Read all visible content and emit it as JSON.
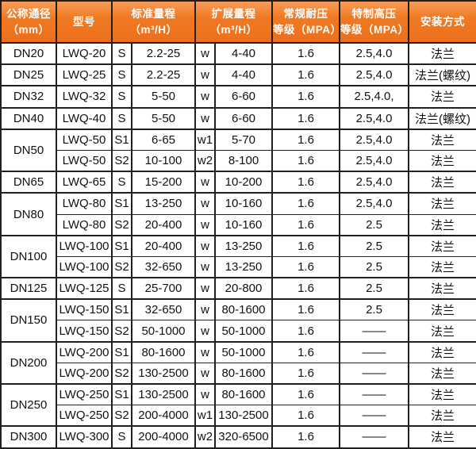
{
  "colors": {
    "header_bg": "#f0761f",
    "header_bg_highlight": "#f99c58",
    "header_text": "#ffffff",
    "grid_border": "#1f1f1f",
    "body_text": "#111111",
    "body_bg": "#ffffff"
  },
  "table": {
    "headers": [
      {
        "label": "公称通径\n（mm）"
      },
      {
        "label": "型号"
      },
      {
        "label": "标准量程\n（m³/H）"
      },
      {
        "label": "扩展量程\n（m³/H）"
      },
      {
        "label": "常规耐压\n等级（MPA）"
      },
      {
        "label": "特制高压\n等级（MPA）"
      },
      {
        "label": "安装方式"
      }
    ],
    "rows": [
      {
        "dn": "DN20",
        "dn_span": 1,
        "model": "LWQ-20",
        "std_code": "S",
        "std_range": "2.2-25",
        "ext_code": "w",
        "ext_range": "4-40",
        "normal_mpa": "1.6",
        "special_mpa": "2.5,4.0",
        "install": "法兰"
      },
      {
        "dn": "DN25",
        "dn_span": 1,
        "model": "LWQ-25",
        "std_code": "S",
        "std_range": "2.2-25",
        "ext_code": "w",
        "ext_range": "4-40",
        "normal_mpa": "1.6",
        "special_mpa": "2.5,4.0",
        "install": "法兰(螺纹)"
      },
      {
        "dn": "DN32",
        "dn_span": 1,
        "model": "LWQ-32",
        "std_code": "S",
        "std_range": "5-50",
        "ext_code": "w",
        "ext_range": "6-60",
        "normal_mpa": "1.6",
        "special_mpa": "2.5,4.0,",
        "install": "法兰"
      },
      {
        "dn": "DN40",
        "dn_span": 1,
        "model": "LWQ-40",
        "std_code": "S",
        "std_range": "5-50",
        "ext_code": "w",
        "ext_range": "6-60",
        "normal_mpa": "1.6",
        "special_mpa": "2.5,4.0",
        "install": "法兰(螺纹)"
      },
      {
        "dn": "DN50",
        "dn_span": 2,
        "model": "LWQ-50",
        "std_code": "S1",
        "std_range": "6-65",
        "ext_code": "w1",
        "ext_range": "5-70",
        "normal_mpa": "1.6",
        "special_mpa": "2.5,4.0",
        "install": "法兰"
      },
      {
        "dn": "",
        "dn_span": 0,
        "model": "LWQ-50",
        "std_code": "S2",
        "std_range": "10-100",
        "ext_code": "w2",
        "ext_range": "8-100",
        "normal_mpa": "1.6",
        "special_mpa": "2.5,4.0",
        "install": "法兰"
      },
      {
        "dn": "DN65",
        "dn_span": 1,
        "model": "LWQ-65",
        "std_code": "S",
        "std_range": "15-200",
        "ext_code": "w",
        "ext_range": "10-200",
        "normal_mpa": "1.6",
        "special_mpa": "2.5,4.0",
        "install": "法兰"
      },
      {
        "dn": "DN80",
        "dn_span": 2,
        "model": "LWQ-80",
        "std_code": "S1",
        "std_range": "13-250",
        "ext_code": "w",
        "ext_range": "10-160",
        "normal_mpa": "1.6",
        "special_mpa": "2.5,4.0",
        "install": "法兰"
      },
      {
        "dn": "",
        "dn_span": 0,
        "model": "LWQ-80",
        "std_code": "S2",
        "std_range": "20-400",
        "ext_code": "w",
        "ext_range": "10-160",
        "normal_mpa": "1.6",
        "special_mpa": "2.5",
        "install": "法兰"
      },
      {
        "dn": "DN100",
        "dn_span": 2,
        "model": "LWQ-100",
        "std_code": "S1",
        "std_range": "20-400",
        "ext_code": "w",
        "ext_range": "13-250",
        "normal_mpa": "1.6",
        "special_mpa": "2.5",
        "install": "法兰"
      },
      {
        "dn": "",
        "dn_span": 0,
        "model": "LWQ-100",
        "std_code": "S2",
        "std_range": "32-650",
        "ext_code": "w",
        "ext_range": "13-250",
        "normal_mpa": "1.6",
        "special_mpa": "2.5",
        "install": "法兰"
      },
      {
        "dn": "DN125",
        "dn_span": 1,
        "model": "LWQ-125",
        "std_code": "S",
        "std_range": "25-700",
        "ext_code": "w",
        "ext_range": "20-800",
        "normal_mpa": "1.6",
        "special_mpa": "2.5",
        "install": "法兰"
      },
      {
        "dn": "DN150",
        "dn_span": 2,
        "model": "LWQ-150",
        "std_code": "S1",
        "std_range": "32-650",
        "ext_code": "w",
        "ext_range": "80-1600",
        "normal_mpa": "1.6",
        "special_mpa": "2.5",
        "install": "法兰"
      },
      {
        "dn": "",
        "dn_span": 0,
        "model": "LWQ-150",
        "std_code": "S2",
        "std_range": "50-1000",
        "ext_code": "w",
        "ext_range": "50-1000",
        "normal_mpa": "1.6",
        "special_mpa": "——",
        "install": "法兰"
      },
      {
        "dn": "DN200",
        "dn_span": 2,
        "model": "LWQ-200",
        "std_code": "S1",
        "std_range": "80-1600",
        "ext_code": "w",
        "ext_range": "50-1000",
        "normal_mpa": "1.6",
        "special_mpa": "——",
        "install": "法兰"
      },
      {
        "dn": "",
        "dn_span": 0,
        "model": "LWQ-200",
        "std_code": "S2",
        "std_range": "130-2500",
        "ext_code": "w",
        "ext_range": "80-1600",
        "normal_mpa": "1.6",
        "special_mpa": "——",
        "install": "法兰"
      },
      {
        "dn": "DN250",
        "dn_span": 2,
        "model": "LWQ-250",
        "std_code": "S1",
        "std_range": "130-2500",
        "ext_code": "w",
        "ext_range": "80-1600",
        "normal_mpa": "1.6",
        "special_mpa": "——",
        "install": "法兰"
      },
      {
        "dn": "",
        "dn_span": 0,
        "model": "LWQ-250",
        "std_code": "S2",
        "std_range": "200-4000",
        "ext_code": "w1",
        "ext_range": "130-2500",
        "normal_mpa": "1.6",
        "special_mpa": "——",
        "install": "法兰"
      },
      {
        "dn": "DN300",
        "dn_span": 1,
        "model": "LWQ-300",
        "std_code": "S",
        "std_range": "200-4000",
        "ext_code": "w2",
        "ext_range": "320-6500",
        "normal_mpa": "1.6",
        "special_mpa": "——",
        "install": "法兰"
      }
    ]
  }
}
